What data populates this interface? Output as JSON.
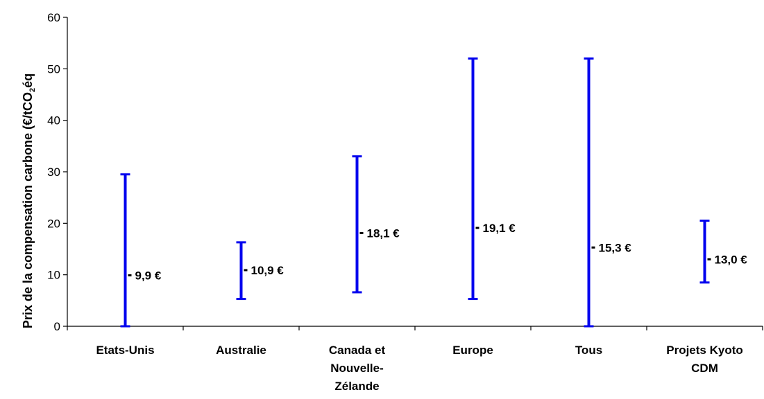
{
  "chart_data": {
    "type": "range",
    "ylabel": "Prix de la compensation carbone (€/tCO",
    "ylabel_sub": "2",
    "ylabel_suffix": "éq",
    "ylim": [
      0,
      60
    ],
    "yticks": [
      "0",
      "10",
      "20",
      "30",
      "40",
      "50",
      "60"
    ],
    "categories": [
      [
        "Etats-Unis"
      ],
      [
        "Australie"
      ],
      [
        "Canada et",
        "Nouvelle-",
        "Zélande"
      ],
      [
        "Europe"
      ],
      [
        "Tous"
      ],
      [
        "Projets Kyoto",
        "CDM"
      ]
    ],
    "series": [
      {
        "min": 0.0,
        "max": 29.5,
        "mean": 9.9,
        "label": "9,9 €"
      },
      {
        "min": 5.3,
        "max": 16.3,
        "mean": 10.9,
        "label": "10,9 €"
      },
      {
        "min": 6.6,
        "max": 33.0,
        "mean": 18.1,
        "label": "18,1 €"
      },
      {
        "min": 5.3,
        "max": 52.0,
        "mean": 19.1,
        "label": "19,1 €"
      },
      {
        "min": 0.0,
        "max": 52.0,
        "mean": 15.3,
        "label": "15,3 €"
      },
      {
        "min": 8.5,
        "max": 20.5,
        "mean": 13.0,
        "label": "13,0 €"
      }
    ],
    "colors": {
      "bar": "#0000ee",
      "axis": "#000000"
    },
    "grid": false,
    "legend": "none"
  }
}
